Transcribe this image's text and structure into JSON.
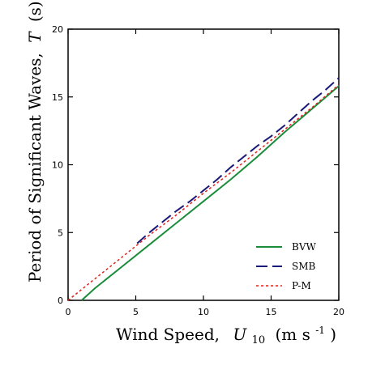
{
  "chart_data": {
    "type": "line",
    "xlabel": "Wind Speed,",
    "xlabel_var": "U",
    "xlabel_sub": "10",
    "xlabel_unit": "(m s",
    "xlabel_unit_exp": "-1",
    "xlabel_unit_close": ")",
    "ylabel": "Period of Significant Waves,",
    "ylabel_var": "T",
    "ylabel_unit": "(s)",
    "xlim": [
      0,
      20
    ],
    "ylim": [
      0,
      20
    ],
    "xticks": [
      0,
      5,
      10,
      15,
      20
    ],
    "yticks": [
      0,
      5,
      10,
      15,
      20
    ],
    "xtick_labels": [
      "0",
      "5",
      "10",
      "15",
      "20"
    ],
    "ytick_labels": [
      "0",
      "5",
      "10",
      "15",
      "20"
    ],
    "grid": false,
    "legend_position": "bottom-right",
    "series": [
      {
        "name": "BVW",
        "color": "#1a8c3a",
        "style": "solid",
        "x": [
          1.0,
          2,
          4,
          6,
          8,
          10,
          12,
          14,
          16,
          18,
          20
        ],
        "y": [
          0.0,
          0.9,
          2.5,
          4.1,
          5.7,
          7.3,
          8.9,
          10.6,
          12.4,
          14.1,
          15.8
        ]
      },
      {
        "name": "SMB",
        "color": "#1a1a7a",
        "style": "dashed",
        "x": [
          5.1,
          6,
          7,
          8,
          9,
          10,
          11,
          12,
          13,
          14,
          15,
          16,
          17,
          18,
          19,
          20
        ],
        "y": [
          4.2,
          5.0,
          5.8,
          6.6,
          7.3,
          8.1,
          8.9,
          9.8,
          10.6,
          11.4,
          12.1,
          12.9,
          13.8,
          14.7,
          15.5,
          16.4
        ]
      },
      {
        "name": "P-M",
        "color": "#e0201b",
        "style": "dotted",
        "x": [
          0,
          2,
          4,
          6,
          8,
          10,
          12,
          14,
          16,
          18,
          20
        ],
        "y": [
          0.0,
          1.6,
          3.2,
          4.8,
          6.3,
          7.9,
          9.4,
          11.0,
          12.6,
          14.2,
          15.9
        ]
      }
    ]
  }
}
